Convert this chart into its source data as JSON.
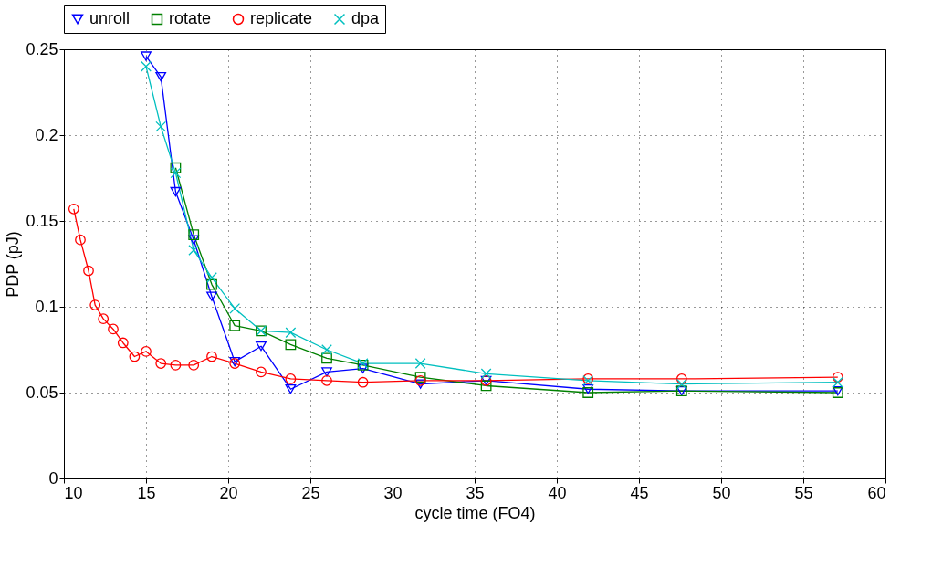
{
  "chart_data": {
    "type": "line",
    "xlabel": "cycle time (FO4)",
    "ylabel": "PDP (pJ)",
    "xlim": [
      10,
      60
    ],
    "xticks": [
      10,
      15,
      20,
      25,
      30,
      35,
      40,
      45,
      50,
      55,
      60
    ],
    "ylim": [
      0,
      0.25
    ],
    "yticks": [
      0,
      0.05,
      0.1,
      0.15,
      0.2,
      0.25
    ],
    "grid": true,
    "legend": "top",
    "line_style": "solid",
    "series": [
      {
        "name": "unroll",
        "color": "#0000ff",
        "marker": "triangle-down",
        "x": [
          15.0,
          15.9,
          16.8,
          17.9,
          19.0,
          20.4,
          22.0,
          23.8,
          26.0,
          28.2,
          31.7,
          35.7,
          41.9,
          47.6,
          57.1
        ],
        "values": [
          0.246,
          0.234,
          0.167,
          0.139,
          0.106,
          0.068,
          0.077,
          0.052,
          0.062,
          0.064,
          0.055,
          0.057,
          0.052,
          0.051,
          0.051
        ]
      },
      {
        "name": "rotate",
        "color": "#008000",
        "marker": "square",
        "x": [
          16.8,
          17.9,
          19.0,
          20.4,
          22.0,
          23.8,
          26.0,
          28.2,
          31.7,
          35.7,
          41.9,
          47.6,
          57.1
        ],
        "values": [
          0.181,
          0.142,
          0.113,
          0.089,
          0.086,
          0.078,
          0.07,
          0.066,
          0.059,
          0.054,
          0.05,
          0.051,
          0.05
        ]
      },
      {
        "name": "replicate",
        "color": "#ff0000",
        "marker": "circle",
        "x": [
          10.6,
          11.0,
          11.5,
          11.9,
          12.4,
          13.0,
          13.6,
          14.3,
          15.0,
          15.9,
          16.8,
          17.9,
          19.0,
          20.4,
          22.0,
          23.8,
          26.0,
          28.2,
          31.7,
          35.7,
          41.9,
          47.6,
          57.1
        ],
        "values": [
          0.157,
          0.139,
          0.121,
          0.101,
          0.093,
          0.087,
          0.079,
          0.071,
          0.074,
          0.067,
          0.066,
          0.066,
          0.071,
          0.067,
          0.062,
          0.058,
          0.057,
          0.056,
          0.057,
          0.057,
          0.058,
          0.058,
          0.059
        ]
      },
      {
        "name": "dpa",
        "color": "#00bfbf",
        "marker": "cross",
        "x": [
          15.0,
          15.9,
          16.8,
          17.9,
          19.0,
          20.4,
          22.0,
          23.8,
          26.0,
          28.2,
          31.7,
          35.7,
          41.9,
          47.6,
          57.1
        ],
        "values": [
          0.24,
          0.205,
          0.178,
          0.133,
          0.117,
          0.099,
          0.086,
          0.085,
          0.075,
          0.067,
          0.067,
          0.061,
          0.057,
          0.055,
          0.056
        ]
      }
    ]
  }
}
